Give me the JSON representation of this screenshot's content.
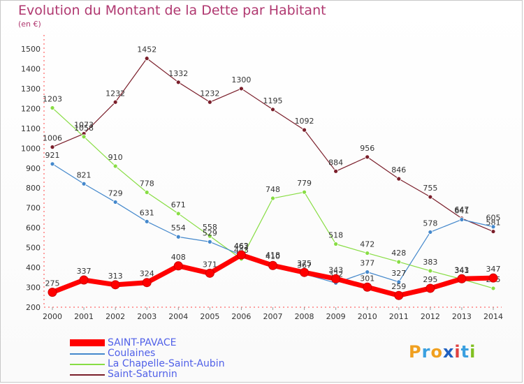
{
  "title": "Evolution du Montant de la Dette par Habitant",
  "subtitle": "(en €)",
  "logo_text": "Proxiti",
  "chart_data": {
    "type": "line",
    "x": [
      2000,
      2001,
      2002,
      2003,
      2004,
      2005,
      2006,
      2007,
      2008,
      2009,
      2010,
      2011,
      2012,
      2013,
      2014
    ],
    "ylim": [
      200,
      1500
    ],
    "yticks": [
      200,
      300,
      400,
      500,
      600,
      700,
      800,
      900,
      1000,
      1100,
      1200,
      1300,
      1400,
      1500
    ],
    "grid": false,
    "legend_position": "bottom-left",
    "series": [
      {
        "name": "Saint-Saturnin",
        "color": "#7a1e2a",
        "values": [
          1006,
          1073,
          1232,
          1452,
          1332,
          1232,
          1300,
          1195,
          1092,
          884,
          956,
          846,
          755,
          647,
          581
        ],
        "labels": [
          "1006",
          "1073",
          "1232",
          "1452",
          "1332",
          "1232",
          "1300",
          "1195",
          "1092",
          "884",
          "956",
          "846",
          "755",
          "647",
          "581"
        ]
      },
      {
        "name": "La Chapelle-Saint-Aubin",
        "color": "#88dd44",
        "values": [
          1203,
          1058,
          910,
          778,
          671,
          558,
          443,
          748,
          779,
          518,
          472,
          428,
          383,
          341,
          295
        ],
        "labels": [
          "1203",
          "1058",
          "910",
          "778",
          "671",
          "558",
          "443",
          "748",
          "779",
          "518",
          "472",
          "428",
          "383",
          "341",
          "295"
        ]
      },
      {
        "name": "Coulaines",
        "color": "#4488cc",
        "values": [
          921,
          821,
          729,
          631,
          554,
          529,
          462,
          418,
          367,
          322,
          377,
          327,
          578,
          641,
          605
        ],
        "labels": [
          "921",
          "821",
          "729",
          "631",
          "554",
          "529",
          "462",
          "418",
          "367",
          "322",
          "377",
          "327",
          "578",
          "641",
          "605"
        ]
      },
      {
        "name": "SAINT-PAVACE",
        "color": "#ff0000",
        "values": [
          275,
          337,
          313,
          324,
          408,
          371,
          463,
          410,
          375,
          343,
          301,
          259,
          295,
          343,
          347
        ],
        "labels": [
          "275",
          "337",
          "313",
          "324",
          "408",
          "371",
          "463",
          "410",
          "375",
          "343",
          "301",
          "259",
          "295",
          "343",
          "347"
        ]
      }
    ]
  },
  "legend": [
    {
      "name": "SAINT-PAVACE",
      "color": "#ff0000"
    },
    {
      "name": "Coulaines",
      "color": "#4488cc"
    },
    {
      "name": "La Chapelle-Saint-Aubin",
      "color": "#88dd44"
    },
    {
      "name": "Saint-Saturnin",
      "color": "#7a1e2a"
    }
  ]
}
